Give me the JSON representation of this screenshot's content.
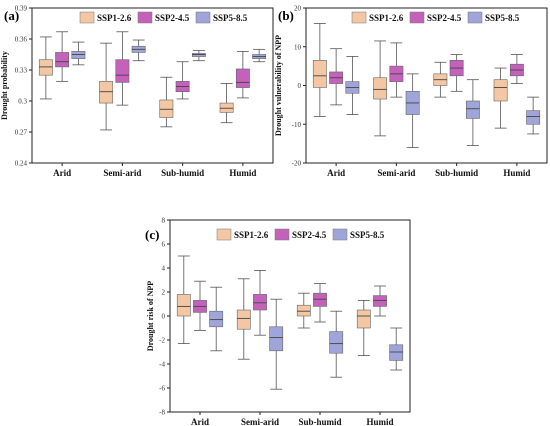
{
  "colors": {
    "ssp126": "#f3c7a4",
    "ssp245": "#c462bb",
    "ssp585": "#9fa5d9"
  },
  "legend": [
    "SSP1-2.6",
    "SSP2-4.5",
    "SSP5-8.5"
  ],
  "chart_data": [
    {
      "type": "box",
      "panel_label": "(a)",
      "ylabel": "Drought probability",
      "categories": [
        "Arid",
        "Semi-arid",
        "Sub-humid",
        "Humid"
      ],
      "ylim": [
        0.24,
        0.39
      ],
      "yticks": [
        0.24,
        0.27,
        0.3,
        0.33,
        0.36,
        0.39
      ],
      "ytick_labels": [
        "0.24",
        "0.27",
        "0.3",
        "0.33",
        "0.36",
        "0.39"
      ],
      "series": [
        {
          "name": "SSP1-2.6",
          "boxes": [
            [
              0.302,
              0.325,
              0.333,
              0.34,
              0.362
            ],
            [
              0.272,
              0.298,
              0.309,
              0.319,
              0.356
            ],
            [
              0.275,
              0.284,
              0.292,
              0.301,
              0.323
            ],
            [
              0.279,
              0.289,
              0.293,
              0.298,
              0.317
            ]
          ]
        },
        {
          "name": "SSP2-4.5",
          "boxes": [
            [
              0.319,
              0.333,
              0.338,
              0.347,
              0.367
            ],
            [
              0.296,
              0.318,
              0.325,
              0.34,
              0.367
            ],
            [
              0.302,
              0.309,
              0.314,
              0.319,
              0.338
            ],
            [
              0.303,
              0.313,
              0.318,
              0.331,
              0.348
            ]
          ]
        },
        {
          "name": "SSP5-8.5",
          "boxes": [
            [
              0.335,
              0.341,
              0.345,
              0.348,
              0.357
            ],
            [
              0.339,
              0.347,
              0.35,
              0.353,
              0.359
            ],
            [
              0.339,
              0.343,
              0.345,
              0.346,
              0.349
            ],
            [
              0.338,
              0.341,
              0.343,
              0.345,
              0.35
            ]
          ]
        }
      ]
    },
    {
      "type": "box",
      "panel_label": "(b)",
      "ylabel": "Drought vulnerability of NPP",
      "categories": [
        "Arid",
        "Semi-arid",
        "Sub-humid",
        "Humid"
      ],
      "ylim": [
        -20,
        20
      ],
      "yticks": [
        -20,
        -10,
        0,
        10,
        20
      ],
      "ytick_labels": [
        "-20",
        "-10",
        "0",
        "10",
        "20"
      ],
      "series": [
        {
          "name": "SSP1-2.6",
          "boxes": [
            [
              -8,
              -0.5,
              2.5,
              6.5,
              16
            ],
            [
              -13,
              -3.5,
              -1,
              2,
              11.5
            ],
            [
              -3,
              0,
              1.5,
              3,
              6
            ],
            [
              -11,
              -4,
              -0.5,
              1.5,
              4.5
            ]
          ]
        },
        {
          "name": "SSP2-4.5",
          "boxes": [
            [
              -5,
              0.5,
              2,
              3.5,
              9.5
            ],
            [
              -3,
              1,
              3,
              5,
              11
            ],
            [
              -1.5,
              2.5,
              4.5,
              6.5,
              8
            ],
            [
              0.5,
              2.5,
              4,
              5.5,
              8
            ]
          ]
        },
        {
          "name": "SSP5-8.5",
          "boxes": [
            [
              -7.5,
              -2,
              -0.5,
              1,
              7.5
            ],
            [
              -16,
              -7.5,
              -4.5,
              -1.5,
              3
            ],
            [
              -15.5,
              -8.5,
              -6,
              -4,
              1.5
            ],
            [
              -12.5,
              -10,
              -8,
              -6.5,
              -3
            ]
          ]
        }
      ]
    },
    {
      "type": "box",
      "panel_label": "(c)",
      "ylabel": "Drought risk of NPP",
      "categories": [
        "Arid",
        "Semi-arid",
        "Sub-humid",
        "Humid"
      ],
      "ylim": [
        -8,
        8
      ],
      "yticks": [
        -8,
        -6,
        -4,
        -2,
        0,
        2,
        4,
        6,
        8
      ],
      "ytick_labels": [
        "-8",
        "-6",
        "-4",
        "-2",
        "0",
        "2",
        "4",
        "6",
        "8"
      ],
      "series": [
        {
          "name": "SSP1-2.6",
          "boxes": [
            [
              -2.3,
              0,
              0.8,
              1.8,
              5
            ],
            [
              -3.6,
              -1.1,
              -0.2,
              0.5,
              3.1
            ],
            [
              -1,
              0,
              0.4,
              0.9,
              1.9
            ],
            [
              -3.3,
              -1,
              0,
              0.5,
              1.3
            ]
          ]
        },
        {
          "name": "SSP2-4.5",
          "boxes": [
            [
              -1.2,
              0.3,
              0.8,
              1.3,
              2.9
            ],
            [
              -1.6,
              0.5,
              1.1,
              1.8,
              3.8
            ],
            [
              -0.5,
              0.8,
              1.4,
              1.9,
              2.7
            ],
            [
              0,
              0.8,
              1.3,
              1.7,
              2.5
            ]
          ]
        },
        {
          "name": "SSP5-8.5",
          "boxes": [
            [
              -2.9,
              -0.9,
              -0.3,
              0.4,
              2.4
            ],
            [
              -6.1,
              -2.9,
              -1.8,
              -0.9,
              1.4
            ],
            [
              -5.1,
              -3.1,
              -2.3,
              -1.3,
              0.4
            ],
            [
              -4.5,
              -3.7,
              -3,
              -2.4,
              -1
            ]
          ]
        }
      ]
    }
  ]
}
